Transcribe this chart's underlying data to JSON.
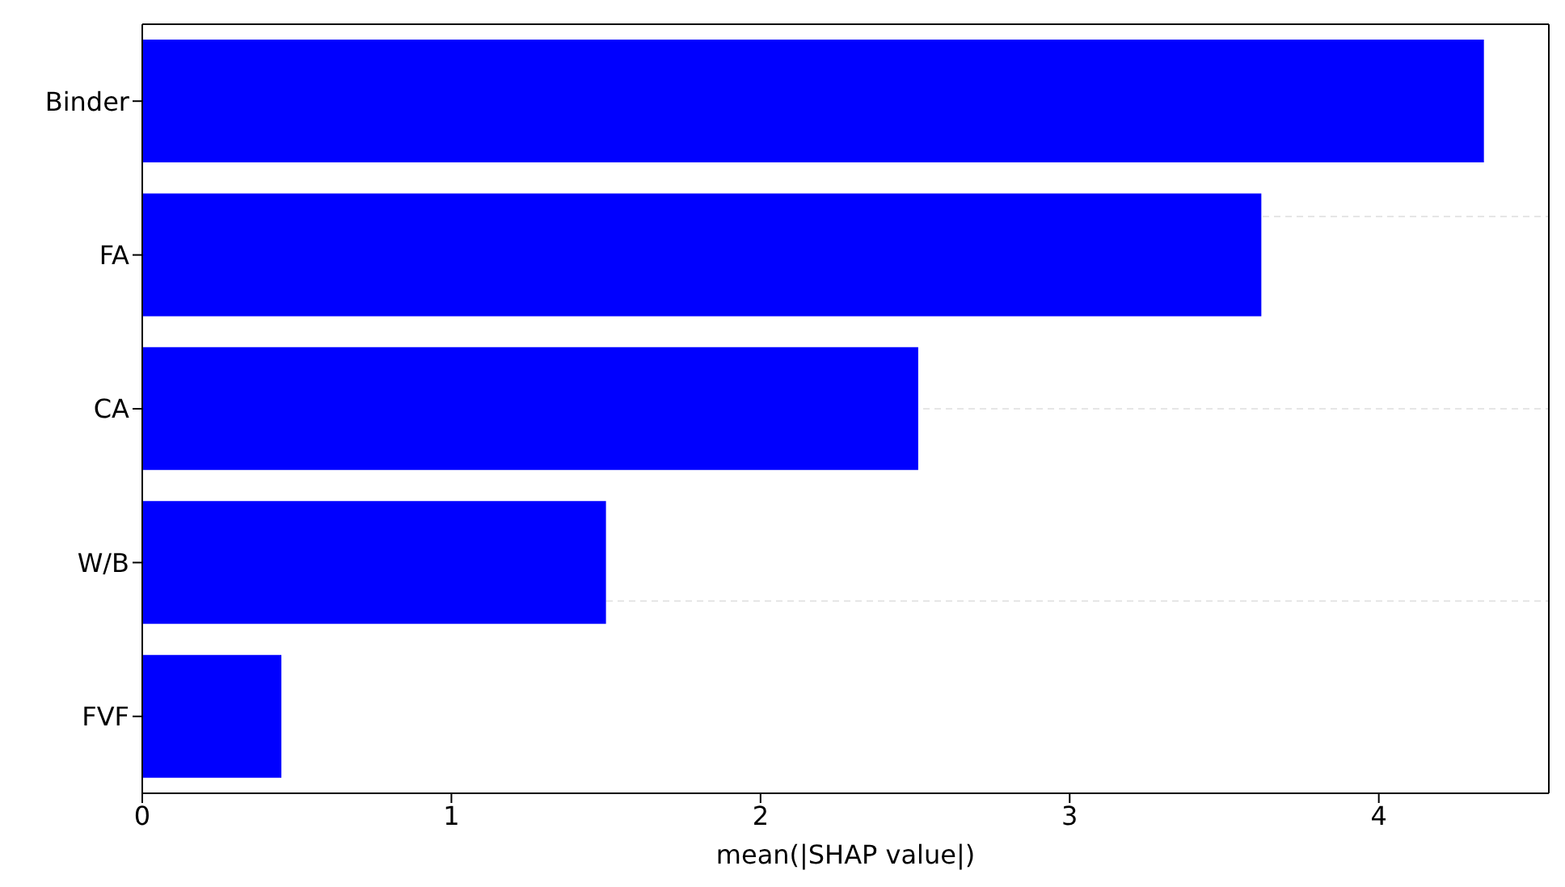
{
  "chart_data": {
    "type": "bar",
    "orientation": "horizontal",
    "xlabel": "mean(|SHAP value|)",
    "categories": [
      "Binder",
      "FA",
      "CA",
      "W/B",
      "FVF"
    ],
    "values": [
      4.34,
      3.62,
      2.51,
      1.5,
      0.45
    ],
    "color": "#0000ff",
    "xlim": [
      0,
      4.55
    ],
    "xticks": [
      0,
      1,
      2,
      3,
      4
    ],
    "grid": true,
    "legend": false
  }
}
